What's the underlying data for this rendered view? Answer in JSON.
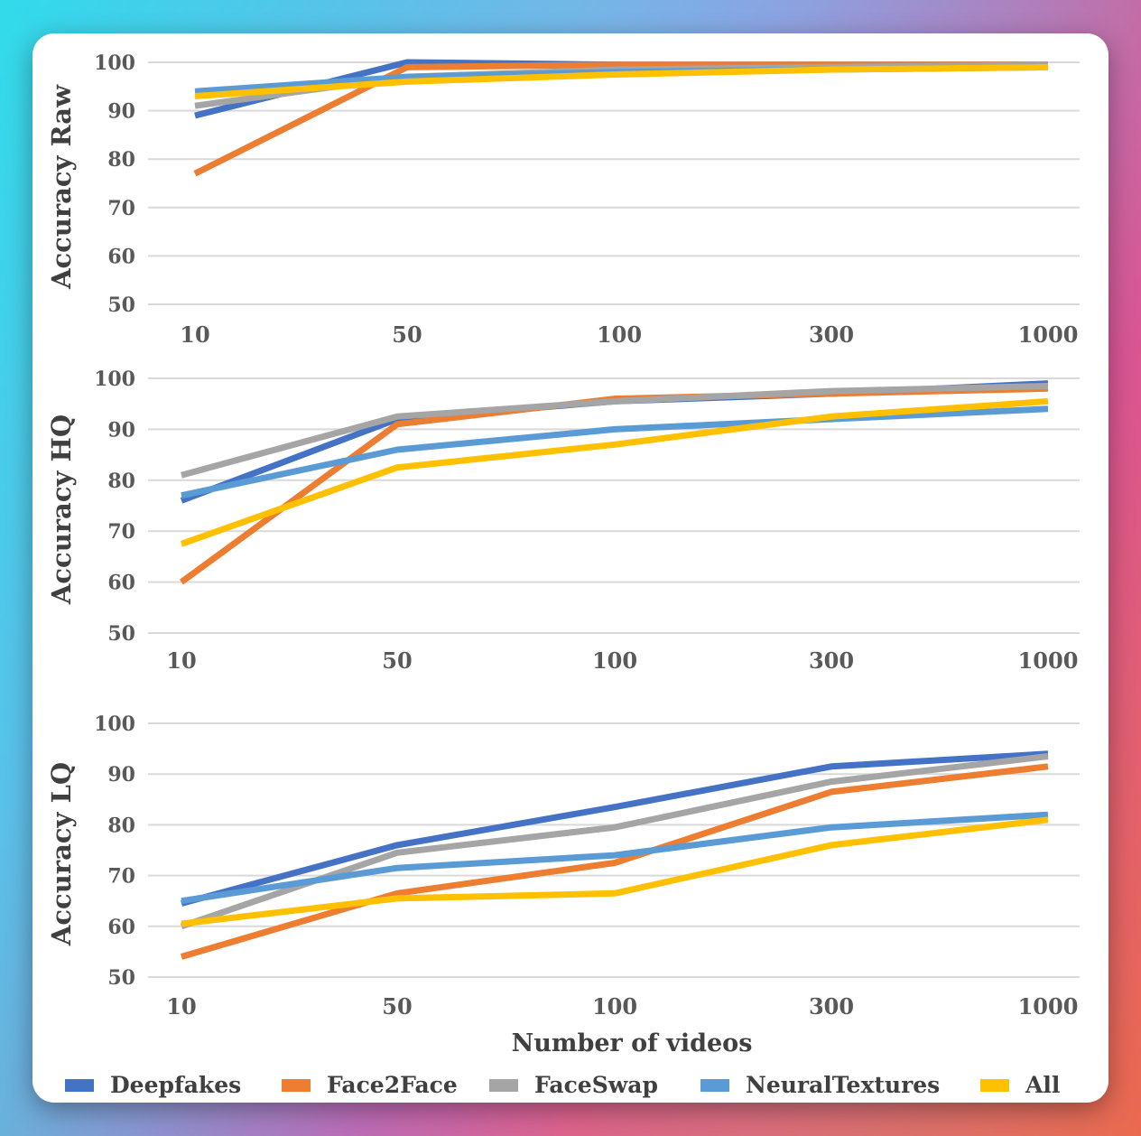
{
  "colors": {
    "Deepfakes": "#4472c4",
    "Face2Face": "#ed7d31",
    "FaceSwap": "#a5a5a5",
    "NeuralTextures": "#5b9bd5",
    "All": "#ffc000",
    "gridline": "#d9d9d9",
    "text": "#595959",
    "axis_title": "#404040"
  },
  "chart_data": [
    {
      "type": "line",
      "ylabel": "Accuracy Raw",
      "categories": [
        "10",
        "50",
        "100",
        "300",
        "1000"
      ],
      "ylim": [
        50,
        100
      ],
      "yticks": [
        50,
        60,
        70,
        80,
        90,
        100
      ],
      "grid": true,
      "series": [
        {
          "name": "Deepfakes",
          "values": [
            89,
            100,
            99.5,
            99.5,
            99.5
          ]
        },
        {
          "name": "Face2Face",
          "values": [
            77,
            99,
            99.5,
            99.5,
            99.5
          ]
        },
        {
          "name": "FaceSwap",
          "values": [
            91,
            97,
            98.5,
            99,
            99.5
          ]
        },
        {
          "name": "NeuralTextures",
          "values": [
            94,
            97,
            98,
            98.5,
            99
          ]
        },
        {
          "name": "All",
          "values": [
            93,
            96,
            97.5,
            98.5,
            99
          ]
        }
      ]
    },
    {
      "type": "line",
      "ylabel": "Accuracy HQ",
      "categories": [
        "10",
        "50",
        "100",
        "300",
        "1000"
      ],
      "ylim": [
        50,
        100
      ],
      "yticks": [
        50,
        60,
        70,
        80,
        90,
        100
      ],
      "grid": true,
      "series": [
        {
          "name": "Deepfakes",
          "values": [
            76,
            92,
            95.5,
            97,
            99
          ]
        },
        {
          "name": "Face2Face",
          "values": [
            60,
            91,
            96,
            97,
            98
          ]
        },
        {
          "name": "FaceSwap",
          "values": [
            81,
            92.5,
            95.5,
            97.5,
            98.5
          ]
        },
        {
          "name": "NeuralTextures",
          "values": [
            77,
            86,
            90,
            92,
            94
          ]
        },
        {
          "name": "All",
          "values": [
            67.5,
            82.5,
            87,
            92.5,
            95.5
          ]
        }
      ]
    },
    {
      "type": "line",
      "ylabel": "Accuracy LQ",
      "xlabel": "Number of videos",
      "categories": [
        "10",
        "50",
        "100",
        "300",
        "1000"
      ],
      "ylim": [
        50,
        100
      ],
      "yticks": [
        50,
        60,
        70,
        80,
        90,
        100
      ],
      "grid": true,
      "series": [
        {
          "name": "Deepfakes",
          "values": [
            64.5,
            76,
            83.5,
            91.5,
            94
          ]
        },
        {
          "name": "Face2Face",
          "values": [
            54,
            66.5,
            72.5,
            86.5,
            91.5
          ]
        },
        {
          "name": "FaceSwap",
          "values": [
            60,
            74.5,
            79.5,
            88.5,
            93.5
          ]
        },
        {
          "name": "NeuralTextures",
          "values": [
            65,
            71.5,
            74,
            79.5,
            82
          ]
        },
        {
          "name": "All",
          "values": [
            60.5,
            65.5,
            66.5,
            76,
            81
          ]
        }
      ]
    }
  ],
  "legend": {
    "placement": "bottom",
    "items": [
      "Deepfakes",
      "Face2Face",
      "FaceSwap",
      "NeuralTextures",
      "All"
    ]
  }
}
